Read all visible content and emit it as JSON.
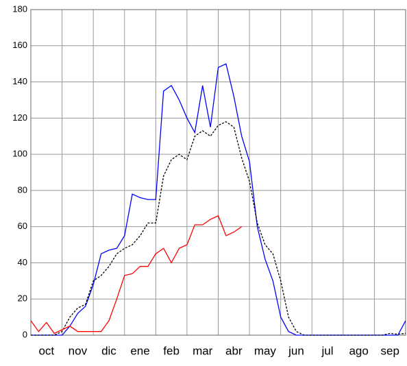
{
  "chart_data": {
    "type": "line",
    "x": [
      0,
      0.25,
      0.5,
      0.75,
      1,
      1.25,
      1.5,
      1.75,
      2,
      2.25,
      2.5,
      2.75,
      3,
      3.25,
      3.5,
      3.75,
      4,
      4.25,
      4.5,
      4.75,
      5,
      5.25,
      5.5,
      5.75,
      6,
      6.25,
      6.5,
      6.75,
      7,
      7.25,
      7.5,
      7.75,
      8,
      8.25,
      8.5,
      8.75,
      9,
      9.25,
      9.5,
      9.75,
      10,
      10.25,
      10.5,
      10.75,
      11,
      11.25,
      11.5,
      11.75,
      12
    ],
    "xlim": [
      0,
      12
    ],
    "xticks": [
      {
        "value": 0.5,
        "label": "oct"
      },
      {
        "value": 1.5,
        "label": "nov"
      },
      {
        "value": 2.5,
        "label": "dic"
      },
      {
        "value": 3.5,
        "label": "ene"
      },
      {
        "value": 4.5,
        "label": "feb"
      },
      {
        "value": 5.5,
        "label": "mar"
      },
      {
        "value": 6.5,
        "label": "abr"
      },
      {
        "value": 7.5,
        "label": "may"
      },
      {
        "value": 8.5,
        "label": "jun"
      },
      {
        "value": 9.5,
        "label": "jul"
      },
      {
        "value": 10.5,
        "label": "ago"
      },
      {
        "value": 11.5,
        "label": "sep"
      }
    ],
    "ylim": [
      0,
      180
    ],
    "yticks": [
      0,
      20,
      40,
      60,
      80,
      100,
      120,
      140,
      160,
      180
    ],
    "grid": true,
    "series": [
      {
        "color": "#0000ff",
        "dash": false,
        "values": [
          0,
          0,
          0,
          0,
          0,
          5,
          12,
          16,
          28,
          45,
          47,
          48,
          55,
          78,
          76,
          75,
          75,
          135,
          138,
          130,
          120,
          112,
          138,
          115,
          148,
          150,
          132,
          110,
          96,
          60,
          42,
          30,
          10,
          2,
          0,
          0,
          0,
          0,
          0,
          0,
          0,
          0,
          0,
          0,
          0,
          0,
          0,
          0,
          8
        ]
      },
      {
        "color": "#000000",
        "dash": true,
        "values": [
          0,
          0,
          0,
          0,
          2,
          10,
          15,
          17,
          30,
          33,
          38,
          45,
          48,
          50,
          55,
          62,
          62,
          88,
          97,
          100,
          97,
          110,
          113,
          110,
          116,
          118,
          115,
          98,
          85,
          62,
          50,
          45,
          30,
          10,
          2,
          0,
          0,
          0,
          0,
          0,
          0,
          0,
          0,
          0,
          0,
          0,
          1,
          0.5,
          1
        ]
      },
      {
        "color": "#ff0000",
        "dash": false,
        "values": [
          8,
          2,
          7,
          1,
          3,
          5,
          2,
          2,
          2,
          2,
          8,
          20,
          33,
          34,
          38,
          38,
          45,
          48,
          40,
          48,
          50,
          61,
          61,
          64,
          66,
          55,
          57,
          60,
          null,
          null,
          null,
          null,
          null,
          null,
          null,
          null,
          null,
          null,
          null,
          null,
          null,
          null,
          null,
          null,
          null,
          null,
          null,
          null,
          null
        ]
      }
    ]
  }
}
